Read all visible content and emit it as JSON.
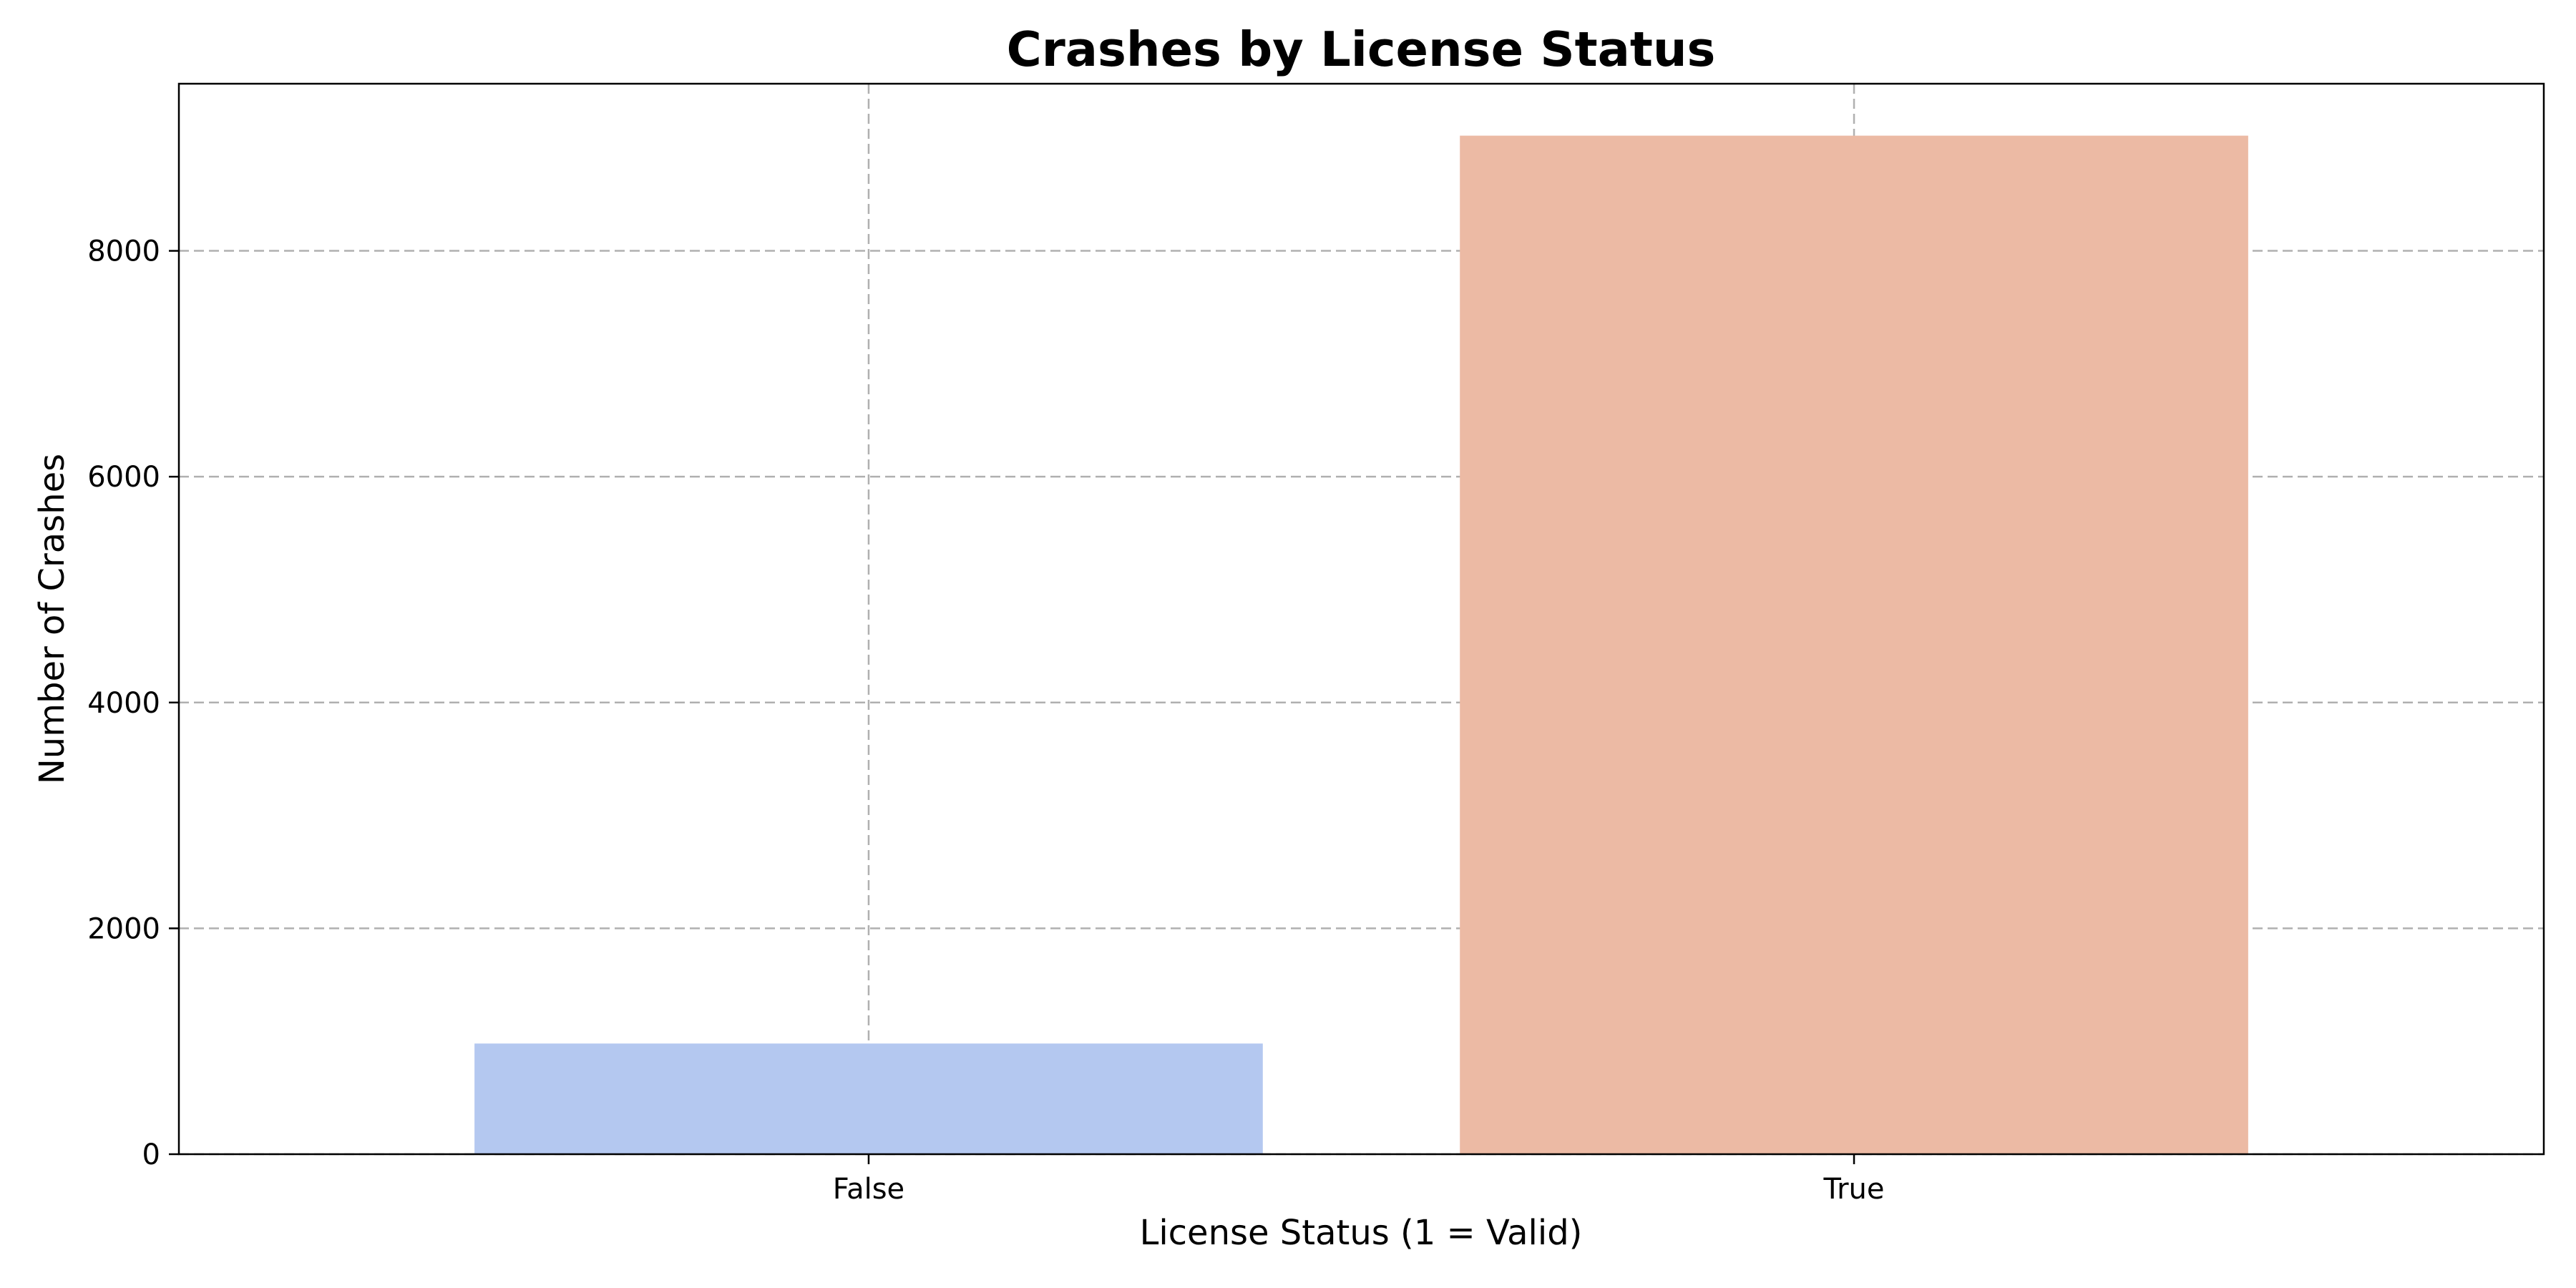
{
  "chart_data": {
    "type": "bar",
    "title": "Crashes by License Status",
    "xlabel": "License Status (1 = Valid)",
    "ylabel": "Number of Crashes",
    "categories": [
      "False",
      "True"
    ],
    "values": [
      980,
      9020
    ],
    "colors": [
      "#b4c8f0",
      "#ecbaa4"
    ],
    "ylim": [
      0,
      9480
    ],
    "yticks": [
      0,
      2000,
      4000,
      6000,
      8000
    ],
    "ytick_labels": [
      "0",
      "2000",
      "4000",
      "6000",
      "8000"
    ],
    "grid": true,
    "legend": "none"
  }
}
